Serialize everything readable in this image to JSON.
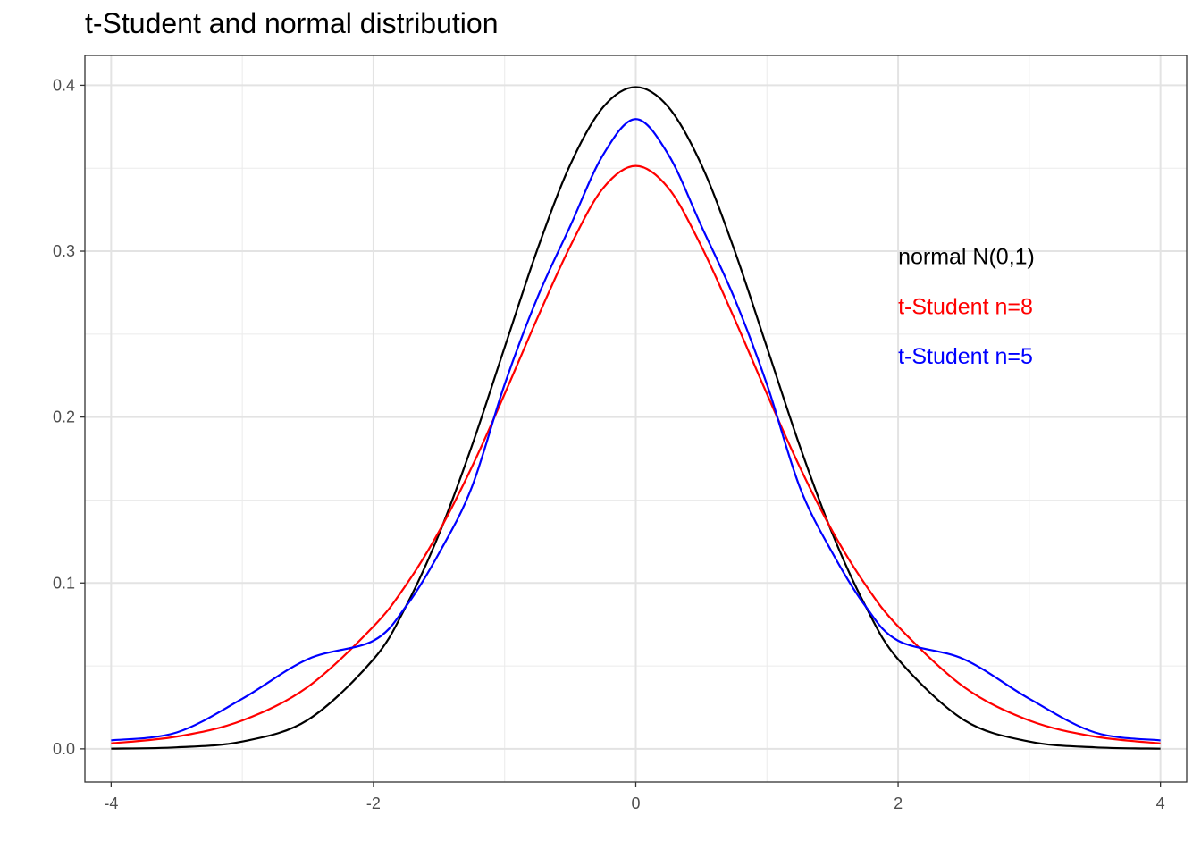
{
  "chart_data": {
    "type": "line",
    "title": "t-Student and normal distribution",
    "xlabel": "",
    "ylabel": "",
    "xlim": [
      -4.2,
      4.2
    ],
    "ylim": [
      -0.02,
      0.418
    ],
    "x_ticks": [
      -4,
      -2,
      0,
      2,
      4
    ],
    "x_tick_labels": [
      "-4",
      "-2",
      "0",
      "2",
      "4"
    ],
    "y_ticks": [
      0.0,
      0.1,
      0.2,
      0.3,
      0.4
    ],
    "y_tick_labels": [
      "0.0",
      "0.1",
      "0.2",
      "0.3",
      "0.4"
    ],
    "grid": true,
    "x": [
      -4,
      -3.5,
      -3,
      -2.5,
      -2,
      -1.75,
      -1.5,
      -1.25,
      -1,
      -0.75,
      -0.5,
      -0.25,
      0,
      0.25,
      0.5,
      0.75,
      1,
      1.25,
      1.5,
      1.75,
      2,
      2.5,
      3,
      3.5,
      4
    ],
    "series": [
      {
        "color": "#000000",
        "values": [
          0.0001,
          0.0009,
          0.0044,
          0.0175,
          0.054,
          0.0863,
          0.1295,
          0.1826,
          0.242,
          0.3011,
          0.3521,
          0.3867,
          0.3989,
          0.3867,
          0.3521,
          0.3011,
          0.242,
          0.1826,
          0.1295,
          0.0863,
          0.054,
          0.0175,
          0.0044,
          0.0009,
          0.0001
        ]
      },
      {
        "color": "#ff0000",
        "values": [
          0.0033,
          0.0074,
          0.0171,
          0.0374,
          0.0738,
          0.099,
          0.1311,
          0.1699,
          0.2139,
          0.2597,
          0.3029,
          0.3379,
          0.3514,
          0.3379,
          0.3029,
          0.2597,
          0.2139,
          0.1699,
          0.1311,
          0.099,
          0.0738,
          0.0374,
          0.0171,
          0.0074,
          0.0033
        ]
      },
      {
        "color": "#0000ff",
        "values": [
          0.0051,
          0.0099,
          0.0302,
          0.0541,
          0.0652,
          0.0861,
          0.118,
          0.1578,
          0.2197,
          0.272,
          0.3151,
          0.358,
          0.3796,
          0.358,
          0.3151,
          0.272,
          0.2197,
          0.1578,
          0.118,
          0.0861,
          0.0652,
          0.0541,
          0.0302,
          0.0099,
          0.0051
        ]
      }
    ],
    "annotations": [
      {
        "text": "normal N(0,1)",
        "x": 2,
        "y": 0.297,
        "color": "#000000"
      },
      {
        "text": "t-Student n=8",
        "x": 2,
        "y": 0.267,
        "color": "#ff0000"
      },
      {
        "text": "t-Student n=5",
        "x": 2,
        "y": 0.237,
        "color": "#0000ff"
      }
    ]
  }
}
